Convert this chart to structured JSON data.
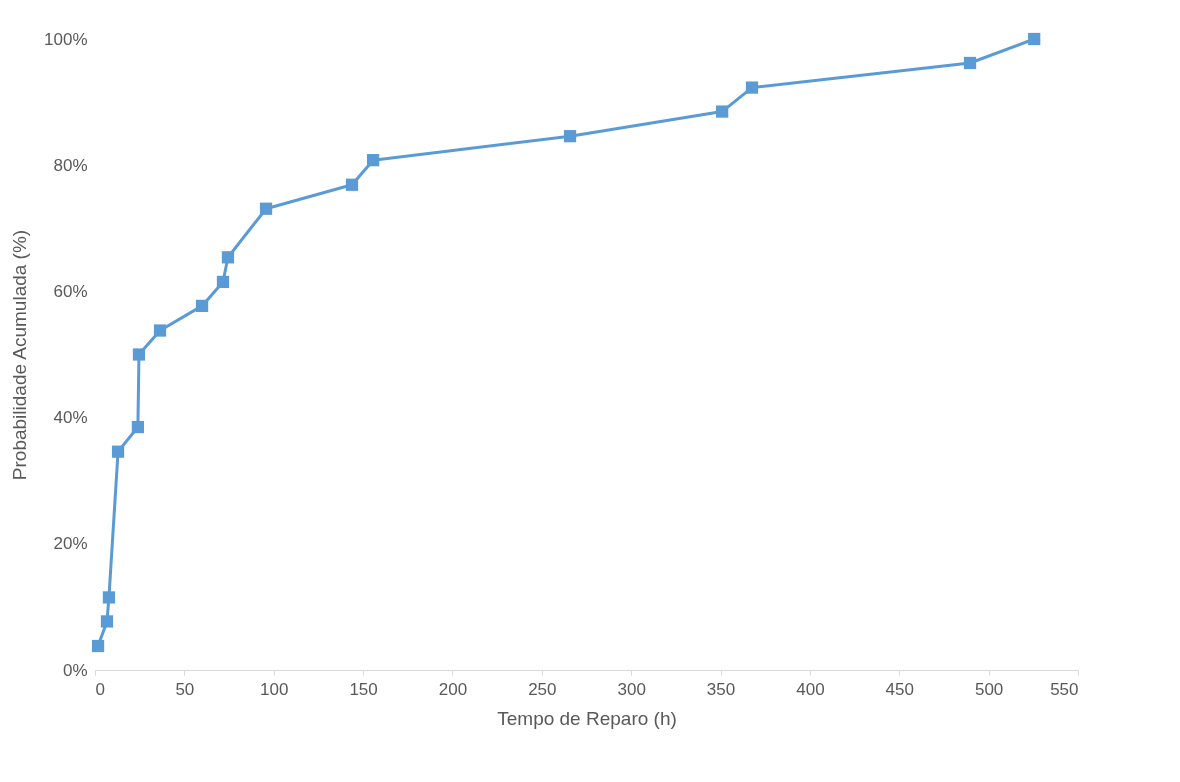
{
  "chart_data": {
    "type": "line",
    "xlabel": "Tempo de Reparo (h)",
    "ylabel": "Probabilidade Acumulada (%)",
    "x": [
      1.7,
      6.7,
      7.8,
      12.9,
      24,
      24.6,
      36.4,
      59.9,
      71.6,
      74.4,
      95.7,
      143.8,
      155.6,
      265.8,
      350.9,
      367.6,
      489.6,
      525.5
    ],
    "series": [
      {
        "color": "#5b9bd5",
        "values": [
          3.8,
          7.7,
          11.5,
          34.6,
          38.5,
          50.0,
          53.8,
          57.7,
          61.5,
          65.4,
          73.1,
          76.9,
          80.8,
          84.6,
          88.5,
          92.3,
          96.2,
          100
        ]
      }
    ],
    "xlim": [
      0,
      550
    ],
    "xticks": [
      0,
      50,
      100,
      150,
      200,
      250,
      300,
      350,
      400,
      450,
      500,
      550
    ],
    "ylim": [
      0,
      100
    ],
    "yticks": [
      {
        "value": 0,
        "label": "0%"
      },
      {
        "value": 20,
        "label": "20%"
      },
      {
        "value": 40,
        "label": "40%"
      },
      {
        "value": 60,
        "label": "60%"
      },
      {
        "value": 80,
        "label": "80%"
      },
      {
        "value": 100,
        "label": "100%"
      }
    ],
    "grid": false,
    "marker": "square",
    "line_style": "solid"
  }
}
